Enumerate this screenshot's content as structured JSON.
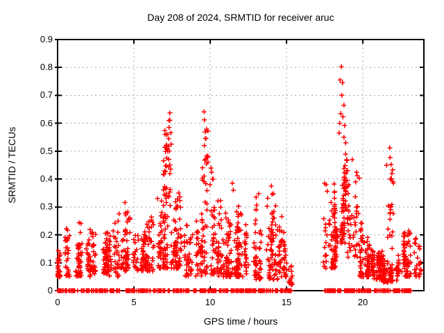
{
  "title": "Day 208 of 2024, SRMTID for receiver aruc",
  "colors": {
    "marker": "#ff0000",
    "grid": "#a8a8a8",
    "border": "#000000",
    "background": "#ffffff"
  },
  "chart_data": {
    "type": "scatter",
    "title": "Day 208 of 2024, SRMTID for receiver aruc",
    "xlabel": "GPS time / hours",
    "ylabel": "SRMTID / TECUs",
    "xlim": [
      0,
      24
    ],
    "ylim": [
      0,
      0.9
    ],
    "xticks": [
      0,
      5,
      10,
      15,
      20
    ],
    "yticks": [
      0,
      0.1,
      0.2,
      0.3,
      0.4,
      0.5,
      0.6,
      0.7,
      0.8,
      0.9
    ],
    "xticklabels": [
      "0",
      "5",
      "10",
      "15",
      "20"
    ],
    "yticklabels": [
      "0",
      "0.1",
      "0.2",
      "0.3",
      "0.4",
      "0.5",
      "0.6",
      "0.7",
      "0.8",
      "0.9"
    ],
    "grid": true,
    "legend": false,
    "marker": "plus",
    "marker_color": "#ff0000",
    "grid_color": "#a8a8a8",
    "data_gaps_hours": [
      [
        15.45,
        17.4
      ]
    ],
    "points": [
      [
        7.36,
        0.637
      ],
      [
        7.36,
        0.611
      ],
      [
        7.3,
        0.585
      ],
      [
        7.42,
        0.566
      ],
      [
        7.28,
        0.545
      ],
      [
        7.45,
        0.525
      ],
      [
        7.22,
        0.5
      ],
      [
        7.15,
        0.475
      ],
      [
        9.59,
        0.641
      ],
      [
        9.62,
        0.612
      ],
      [
        9.66,
        0.569
      ],
      [
        9.7,
        0.545
      ],
      [
        9.62,
        0.52
      ],
      [
        9.75,
        0.455
      ],
      [
        10.05,
        0.44
      ],
      [
        10.1,
        0.425
      ],
      [
        10.18,
        0.4
      ],
      [
        11.45,
        0.385
      ],
      [
        11.52,
        0.36
      ],
      [
        13.0,
        0.335
      ],
      [
        14.0,
        0.375
      ],
      [
        14.06,
        0.345
      ],
      [
        15.2,
        0.027
      ],
      [
        4.42,
        0.316
      ],
      [
        6.55,
        0.33
      ],
      [
        18.59,
        0.803
      ],
      [
        18.52,
        0.755
      ],
      [
        18.67,
        0.745
      ],
      [
        18.62,
        0.7
      ],
      [
        18.75,
        0.665
      ],
      [
        18.55,
        0.635
      ],
      [
        18.7,
        0.623
      ],
      [
        18.49,
        0.6
      ],
      [
        18.8,
        0.592
      ],
      [
        18.45,
        0.565
      ],
      [
        18.76,
        0.55
      ],
      [
        18.88,
        0.53
      ],
      [
        19.3,
        0.47
      ],
      [
        21.77,
        0.512
      ],
      [
        21.79,
        0.477
      ],
      [
        21.85,
        0.452
      ],
      [
        21.9,
        0.42
      ],
      [
        21.8,
        0.4
      ]
    ],
    "cluster_fields": "[x_start_h, x_end_h, v_min, v_max, n_points, n_streaks, low_bias]",
    "density_clusters": [
      [
        0.0,
        1.05,
        0.05,
        0.24,
        60,
        6,
        1.6
      ],
      [
        1.05,
        2.15,
        0.05,
        0.27,
        75,
        7,
        1.6
      ],
      [
        2.15,
        3.25,
        0.06,
        0.25,
        70,
        7,
        1.6
      ],
      [
        3.25,
        4.25,
        0.05,
        0.28,
        55,
        6,
        1.6
      ],
      [
        4.25,
        5.3,
        0.07,
        0.31,
        75,
        7,
        1.5
      ],
      [
        5.3,
        6.35,
        0.07,
        0.31,
        85,
        8,
        1.5
      ],
      [
        6.35,
        7.05,
        0.08,
        0.33,
        60,
        5,
        1.4
      ],
      [
        6.9,
        7.6,
        0.3,
        0.64,
        40,
        5,
        1.0
      ],
      [
        7.05,
        8.35,
        0.08,
        0.4,
        85,
        8,
        1.8
      ],
      [
        8.35,
        9.45,
        0.05,
        0.3,
        70,
        7,
        1.5
      ],
      [
        9.45,
        9.95,
        0.35,
        0.63,
        16,
        3,
        1.0
      ],
      [
        9.45,
        10.55,
        0.06,
        0.45,
        90,
        8,
        1.9
      ],
      [
        10.55,
        11.75,
        0.05,
        0.39,
        90,
        8,
        1.7
      ],
      [
        11.75,
        12.85,
        0.05,
        0.31,
        80,
        8,
        1.5
      ],
      [
        12.85,
        14.45,
        0.04,
        0.375,
        115,
        10,
        1.5
      ],
      [
        14.45,
        15.1,
        0.05,
        0.28,
        50,
        5,
        1.5
      ],
      [
        15.05,
        15.4,
        0.02,
        0.16,
        14,
        3,
        1.2
      ],
      [
        17.35,
        18.45,
        0.08,
        0.44,
        80,
        7,
        1.7
      ],
      [
        18.4,
        19.05,
        0.2,
        0.66,
        50,
        5,
        1.0
      ],
      [
        18.0,
        18.8,
        0.17,
        0.26,
        35,
        5,
        1.3
      ],
      [
        19.05,
        19.7,
        0.12,
        0.47,
        45,
        5,
        1.4
      ],
      [
        19.7,
        20.7,
        0.05,
        0.25,
        95,
        8,
        1.7
      ],
      [
        20.7,
        21.5,
        0.04,
        0.19,
        75,
        7,
        1.5
      ],
      [
        21.5,
        22.0,
        0.15,
        0.51,
        20,
        3,
        1.1
      ],
      [
        21.4,
        22.5,
        0.03,
        0.16,
        80,
        7,
        1.5
      ],
      [
        22.5,
        23.15,
        0.05,
        0.26,
        60,
        5,
        1.3
      ],
      [
        23.3,
        23.75,
        0.05,
        0.21,
        25,
        3,
        1.2
      ]
    ],
    "zero_segment_fields": "[x_start_h, x_end_h, n_points] at value 0",
    "zero_segments": [
      [
        0.0,
        0.55,
        14
      ],
      [
        0.6,
        1.3,
        18
      ],
      [
        1.4,
        2.1,
        17
      ],
      [
        2.2,
        3.3,
        26
      ],
      [
        3.35,
        4.1,
        18
      ],
      [
        4.3,
        5.25,
        23
      ],
      [
        5.3,
        6.1,
        20
      ],
      [
        6.15,
        7.1,
        23
      ],
      [
        7.15,
        8.6,
        35
      ],
      [
        8.9,
        9.1,
        6
      ],
      [
        9.3,
        10.4,
        27
      ],
      [
        10.55,
        11.15,
        15
      ],
      [
        11.35,
        12.2,
        21
      ],
      [
        12.25,
        13.0,
        19
      ],
      [
        13.15,
        14.0,
        20
      ],
      [
        14.05,
        15.0,
        23
      ],
      [
        15.05,
        15.32,
        8
      ],
      [
        17.5,
        18.3,
        20
      ],
      [
        18.35,
        19.9,
        38
      ],
      [
        19.95,
        20.9,
        24
      ],
      [
        20.95,
        21.8,
        21
      ],
      [
        21.9,
        22.5,
        15
      ],
      [
        22.55,
        23.05,
        14
      ],
      [
        23.1,
        23.25,
        4
      ]
    ],
    "seed": 13
  }
}
